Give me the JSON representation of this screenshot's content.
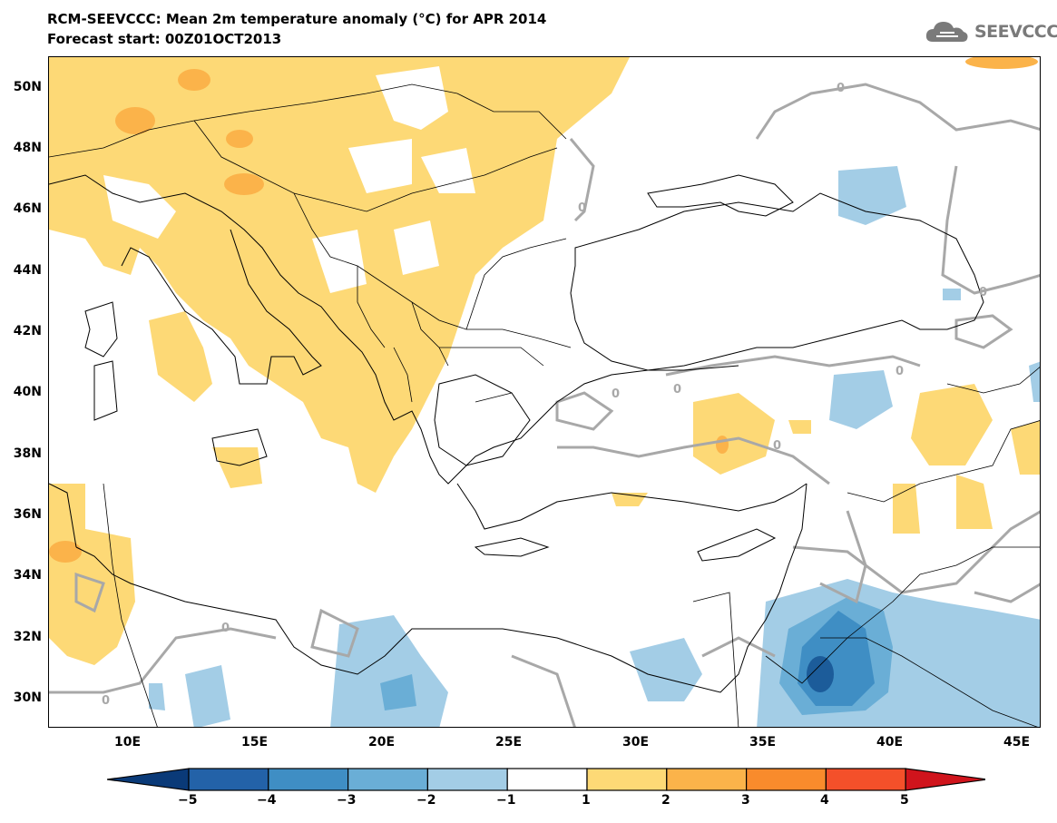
{
  "header": {
    "title": "RCM-SEEVCCC: Mean 2m temperature anomaly (°C) for APR 2014",
    "subtitle": "Forecast start: 00Z01OCT2013",
    "logo_text": "SEEVCCC"
  },
  "map": {
    "lat_labels": [
      "50N",
      "48N",
      "46N",
      "44N",
      "42N",
      "40N",
      "38N",
      "36N",
      "34N",
      "32N",
      "30N"
    ],
    "lon_labels": [
      "10E",
      "15E",
      "20E",
      "25E",
      "30E",
      "35E",
      "40E",
      "45E"
    ],
    "contour_label": "0",
    "colors": {
      "warm1": "#fdd976",
      "warm2": "#fbb34a",
      "warm3": "#f98b2c",
      "cool1": "#a3cde6",
      "cool2": "#6aaed6",
      "cool3": "#3f8ec4",
      "cool4": "#1c5c9a",
      "zero_contour": "#a8a8a8",
      "coast": "#000000"
    }
  },
  "colorbar": {
    "labels": [
      "−5",
      "−4",
      "−3",
      "−2",
      "−1",
      "1",
      "2",
      "3",
      "4",
      "5"
    ],
    "colors": [
      "#0a3a78",
      "#2362a8",
      "#3f8ec4",
      "#6aaed6",
      "#a3cde6",
      "#ffffff",
      "#fdd976",
      "#fbb34a",
      "#f98b2c",
      "#f4502a",
      "#d0141c"
    ]
  }
}
